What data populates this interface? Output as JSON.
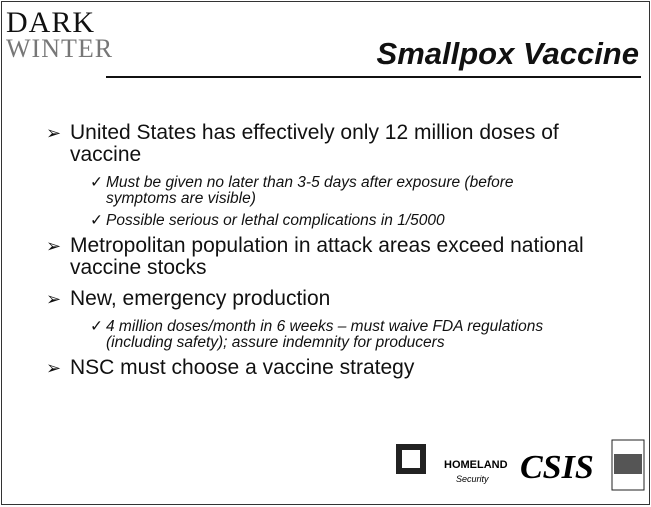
{
  "header": {
    "logo": {
      "line1": "DARK",
      "line2": "WINTER"
    },
    "title": "Smallpox Vaccine"
  },
  "bullets": [
    {
      "text": "United States has effectively only 12 million doses of vaccine",
      "subs": [
        "Must be given no later than 3-5 days after exposure (before symptoms are visible)",
        "Possible serious or lethal complications in 1/5000"
      ]
    },
    {
      "text": "Metropolitan population in attack areas exceed national vaccine stocks",
      "subs": []
    },
    {
      "text": "New, emergency production",
      "subs": [
        "4 million doses/month in 6 weeks – must waive FDA regulations (including safety); assure indemnity for producers"
      ]
    },
    {
      "text": "NSC must choose a vaccine strategy",
      "subs": []
    }
  ],
  "footer": {
    "homeland": "HOMELAND",
    "security": "Security",
    "csis": "CSIS"
  }
}
